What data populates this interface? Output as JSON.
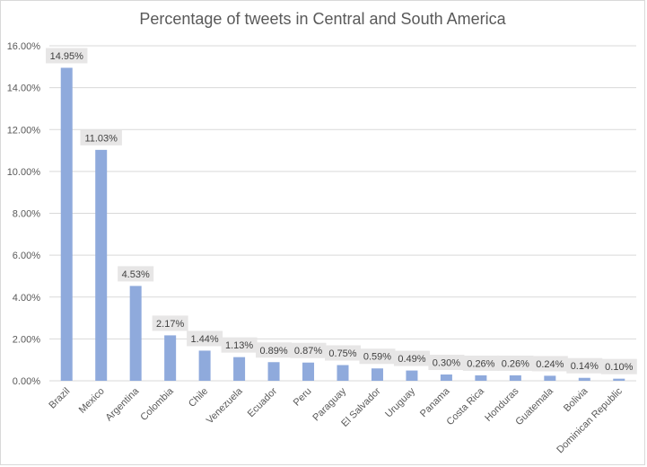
{
  "chart_data": {
    "type": "bar",
    "title": "Percentage of tweets in Central and South America",
    "xlabel": "",
    "ylabel": "",
    "categories": [
      "Brazil",
      "Mexico",
      "Argentina",
      "Colombia",
      "Chile",
      "Venezuela",
      "Ecuador",
      "Peru",
      "Paraguay",
      "El Salvador",
      "Uruguay",
      "Panama",
      "Costa Rica",
      "Honduras",
      "Guatemala",
      "Bolivia",
      "Dominican Republic"
    ],
    "values": [
      14.95,
      11.03,
      4.53,
      2.17,
      1.44,
      1.13,
      0.89,
      0.87,
      0.75,
      0.59,
      0.49,
      0.3,
      0.26,
      0.26,
      0.24,
      0.14,
      0.1
    ],
    "data_labels": [
      "14.95%",
      "11.03%",
      "4.53%",
      "2.17%",
      "1.44%",
      "1.13%",
      "0.89%",
      "0.87%",
      "0.75%",
      "0.59%",
      "0.49%",
      "0.30%",
      "0.26%",
      "0.26%",
      "0.24%",
      "0.14%",
      "0.10%"
    ],
    "ylim": [
      0,
      16
    ],
    "y_ticks": [
      0,
      2,
      4,
      6,
      8,
      10,
      12,
      14,
      16
    ],
    "y_tick_labels": [
      "0.00%",
      "2.00%",
      "4.00%",
      "6.00%",
      "8.00%",
      "10.00%",
      "12.00%",
      "14.00%",
      "16.00%"
    ],
    "grid": true,
    "legend": "none",
    "colors": {
      "bar": "#8faadc",
      "gridline": "#d9d9d9",
      "label_box": "#e7e6e6",
      "text": "#595959"
    }
  }
}
